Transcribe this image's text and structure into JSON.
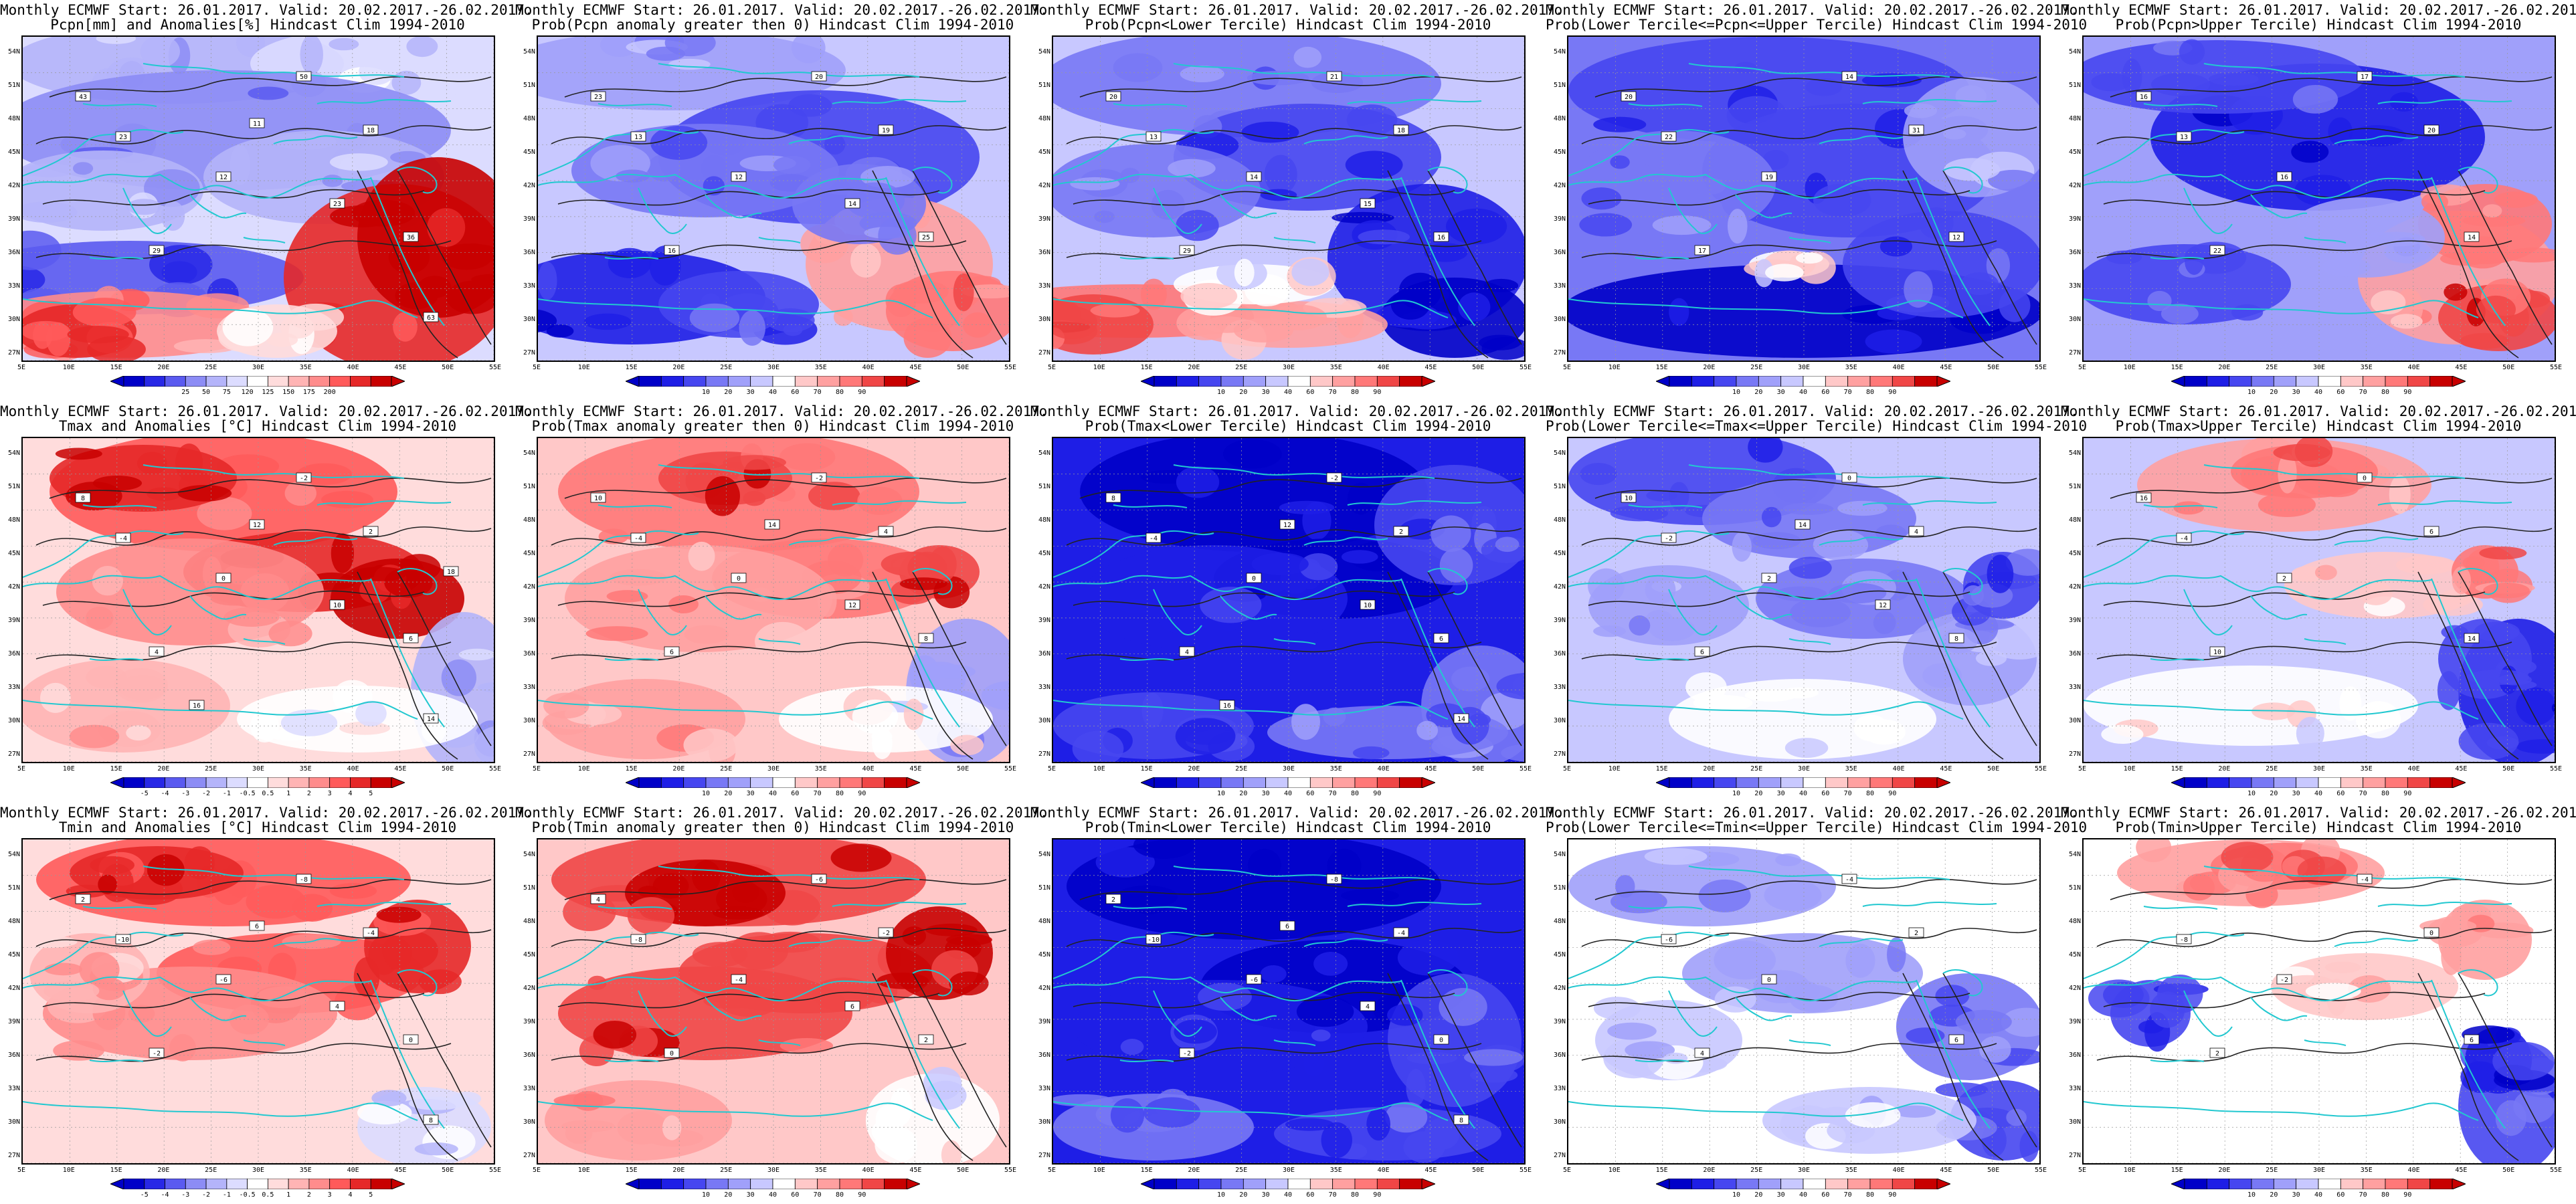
{
  "header": {
    "start_text": "Monthly ECMWF Start: 26.01.2017. Valid: 20.02.2017.-26.02.2017."
  },
  "axes": {
    "lat_labels": [
      "54N",
      "51N",
      "48N",
      "45N",
      "42N",
      "39N",
      "36N",
      "33N",
      "30N",
      "27N"
    ],
    "lon_labels": [
      "5E",
      "10E",
      "15E",
      "20E",
      "25E",
      "30E",
      "35E",
      "40E",
      "45E",
      "50E",
      "55E"
    ]
  },
  "colors": {
    "contour": "#222222",
    "coast": "#22c8d0"
  },
  "colorbars": {
    "pcpn": {
      "colors": [
        "#0000c8",
        "#2828e6",
        "#5a5af0",
        "#8c8cf5",
        "#b4b4fa",
        "#dcdcff",
        "#ffffff",
        "#ffdcdc",
        "#ffb4b4",
        "#ff8c8c",
        "#ff5a5a",
        "#e62828",
        "#c80000"
      ],
      "ticks": [
        "25",
        "50",
        "75",
        "120",
        "125",
        "150",
        "175",
        "200"
      ]
    },
    "prob": {
      "colors": [
        "#0000c8",
        "#1e1ee6",
        "#4646f0",
        "#7878f5",
        "#a0a0fa",
        "#c8c8ff",
        "#ffffff",
        "#ffc8c8",
        "#ffa0a0",
        "#ff7878",
        "#f04646",
        "#c80000"
      ],
      "ticks": [
        "10",
        "20",
        "30",
        "40",
        "60",
        "70",
        "80",
        "90"
      ]
    },
    "temp": {
      "colors": [
        "#0000c8",
        "#2828e6",
        "#5a5af0",
        "#8c8cf5",
        "#b4b4fa",
        "#dcdcff",
        "#ffffff",
        "#ffdcdc",
        "#ffb4b4",
        "#ff8c8c",
        "#ff5a5a",
        "#e62828",
        "#c80000"
      ],
      "ticks": [
        "-5",
        "-4",
        "-3",
        "-2",
        "-1",
        "-0.5",
        "0.5",
        "1",
        "2",
        "3",
        "4",
        "5"
      ]
    }
  },
  "panels": [
    {
      "title": "Pcpn[mm] and Anomalies[%] Hindcast Clim 1994-2010",
      "palette": "pcpn",
      "pattern": "pcpn_anom",
      "contour_labels": [
        "23",
        "50",
        "12",
        "18",
        "29",
        "36",
        "43",
        "23",
        "11",
        "63"
      ]
    },
    {
      "title": "Prob(Pcpn anomaly greater then 0) Hindcast Clim 1994-2010",
      "palette": "prob",
      "pattern": "pcpn_gt0",
      "contour_labels": [
        "13",
        "20",
        "12",
        "19",
        "16",
        "25",
        "23",
        "14"
      ]
    },
    {
      "title": "Prob(Pcpn<Lower Tercile) Hindcast Clim 1994-2010",
      "palette": "prob",
      "pattern": "pcpn_lower",
      "contour_labels": [
        "13",
        "21",
        "14",
        "18",
        "29",
        "16",
        "20",
        "15"
      ]
    },
    {
      "title": "Prob(Lower Tercile<=Pcpn<=Upper Tercile) Hindcast Clim 1994-2010",
      "palette": "prob",
      "pattern": "pcpn_middle",
      "contour_labels": [
        "22",
        "14",
        "19",
        "31",
        "17",
        "12",
        "20"
      ]
    },
    {
      "title": "Prob(Pcpn>Upper Tercile) Hindcast Clim 1994-2010",
      "palette": "prob",
      "pattern": "pcpn_upper",
      "contour_labels": [
        "13",
        "17",
        "16",
        "20",
        "22",
        "14",
        "16"
      ]
    },
    {
      "title": "Tmax and Anomalies [°C] Hindcast Clim 1994-2010",
      "palette": "temp",
      "pattern": "tmax_anom",
      "contour_labels": [
        "-4",
        "-2",
        "0",
        "2",
        "4",
        "6",
        "8",
        "10",
        "12",
        "14",
        "16",
        "18"
      ]
    },
    {
      "title": "Prob(Tmax anomaly greater then 0) Hindcast Clim 1994-2010",
      "palette": "prob",
      "pattern": "tmax_gt0",
      "contour_labels": [
        "-4",
        "-2",
        "0",
        "4",
        "6",
        "8",
        "10",
        "12",
        "14"
      ]
    },
    {
      "title": "Prob(Tmax<Lower Tercile) Hindcast Clim 1994-2010",
      "palette": "prob",
      "pattern": "tmax_lower",
      "contour_labels": [
        "-4",
        "-2",
        "0",
        "2",
        "4",
        "6",
        "8",
        "10",
        "12",
        "14",
        "16"
      ]
    },
    {
      "title": "Prob(Lower Tercile<=Tmax<=Upper Tercile) Hindcast Clim 1994-2010",
      "palette": "prob",
      "pattern": "tmax_middle",
      "contour_labels": [
        "-2",
        "0",
        "2",
        "4",
        "6",
        "8",
        "10",
        "12",
        "14"
      ]
    },
    {
      "title": "Prob(Tmax>Upper Tercile) Hindcast Clim 1994-2010",
      "palette": "prob",
      "pattern": "tmax_upper",
      "contour_labels": [
        "-4",
        "0",
        "2",
        "6",
        "10",
        "14",
        "16"
      ]
    },
    {
      "title": "Tmin and Anomalies [°C] Hindcast Clim 1994-2010",
      "palette": "temp",
      "pattern": "tmin_anom",
      "contour_labels": [
        "-10",
        "-8",
        "-6",
        "-4",
        "-2",
        "0",
        "2",
        "4",
        "6",
        "8"
      ]
    },
    {
      "title": "Prob(Tmin anomaly greater then 0) Hindcast Clim 1994-2010",
      "palette": "prob",
      "pattern": "tmin_gt0",
      "contour_labels": [
        "-8",
        "-6",
        "-4",
        "-2",
        "0",
        "2",
        "4",
        "6"
      ]
    },
    {
      "title": "Prob(Tmin<Lower Tercile) Hindcast Clim 1994-2010",
      "palette": "prob",
      "pattern": "tmin_lower",
      "contour_labels": [
        "-10",
        "-8",
        "-6",
        "-4",
        "-2",
        "0",
        "2",
        "4",
        "6",
        "8"
      ]
    },
    {
      "title": "Prob(Lower Tercile<=Tmin<=Upper Tercile) Hindcast Clim 1994-2010",
      "palette": "prob",
      "pattern": "tmin_middle",
      "contour_labels": [
        "-6",
        "-4",
        "0",
        "2",
        "4",
        "6"
      ]
    },
    {
      "title": "Prob(Tmin>Upper Tercile) Hindcast Clim 1994-2010",
      "palette": "prob",
      "pattern": "tmin_upper",
      "contour_labels": [
        "-8",
        "-4",
        "-2",
        "0",
        "2",
        "6"
      ]
    }
  ]
}
